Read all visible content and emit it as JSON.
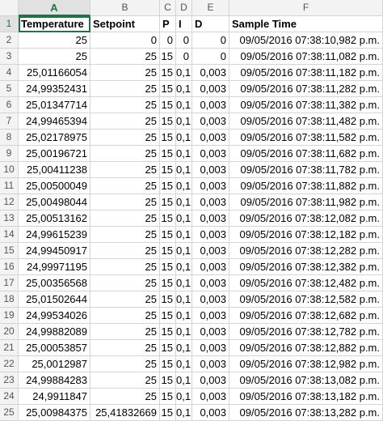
{
  "columns": [
    "A",
    "B",
    "C",
    "D",
    "E",
    "F"
  ],
  "header_row_number": "1",
  "headers": [
    "Temperature",
    "Setpoint",
    "P",
    "I",
    "D",
    "Sample Time"
  ],
  "rows": [
    {
      "n": "2",
      "a": "25",
      "b": "0",
      "c": "0",
      "d": "0",
      "e": "0",
      "f": "09/05/2016 07:38:10,982 p.m."
    },
    {
      "n": "3",
      "a": "25",
      "b": "25",
      "c": "15",
      "d": "0",
      "e": "0",
      "f": "09/05/2016 07:38:11,082 p.m."
    },
    {
      "n": "4",
      "a": "25,01166054",
      "b": "25",
      "c": "15",
      "d": "0,1",
      "e": "0,003",
      "f": "09/05/2016 07:38:11,182 p.m."
    },
    {
      "n": "5",
      "a": "24,99352431",
      "b": "25",
      "c": "15",
      "d": "0,1",
      "e": "0,003",
      "f": "09/05/2016 07:38:11,282 p.m."
    },
    {
      "n": "6",
      "a": "25,01347714",
      "b": "25",
      "c": "15",
      "d": "0,1",
      "e": "0,003",
      "f": "09/05/2016 07:38:11,382 p.m."
    },
    {
      "n": "7",
      "a": "24,99465394",
      "b": "25",
      "c": "15",
      "d": "0,1",
      "e": "0,003",
      "f": "09/05/2016 07:38:11,482 p.m."
    },
    {
      "n": "8",
      "a": "25,02178975",
      "b": "25",
      "c": "15",
      "d": "0,1",
      "e": "0,003",
      "f": "09/05/2016 07:38:11,582 p.m."
    },
    {
      "n": "9",
      "a": "25,00196721",
      "b": "25",
      "c": "15",
      "d": "0,1",
      "e": "0,003",
      "f": "09/05/2016 07:38:11,682 p.m."
    },
    {
      "n": "10",
      "a": "25,00411238",
      "b": "25",
      "c": "15",
      "d": "0,1",
      "e": "0,003",
      "f": "09/05/2016 07:38:11,782 p.m."
    },
    {
      "n": "11",
      "a": "25,00500049",
      "b": "25",
      "c": "15",
      "d": "0,1",
      "e": "0,003",
      "f": "09/05/2016 07:38:11,882 p.m."
    },
    {
      "n": "12",
      "a": "25,00498044",
      "b": "25",
      "c": "15",
      "d": "0,1",
      "e": "0,003",
      "f": "09/05/2016 07:38:11,982 p.m."
    },
    {
      "n": "13",
      "a": "25,00513162",
      "b": "25",
      "c": "15",
      "d": "0,1",
      "e": "0,003",
      "f": "09/05/2016 07:38:12,082 p.m."
    },
    {
      "n": "14",
      "a": "24,99615239",
      "b": "25",
      "c": "15",
      "d": "0,1",
      "e": "0,003",
      "f": "09/05/2016 07:38:12,182 p.m."
    },
    {
      "n": "15",
      "a": "24,99450917",
      "b": "25",
      "c": "15",
      "d": "0,1",
      "e": "0,003",
      "f": "09/05/2016 07:38:12,282 p.m."
    },
    {
      "n": "16",
      "a": "24,99971195",
      "b": "25",
      "c": "15",
      "d": "0,1",
      "e": "0,003",
      "f": "09/05/2016 07:38:12,382 p.m."
    },
    {
      "n": "17",
      "a": "25,00356568",
      "b": "25",
      "c": "15",
      "d": "0,1",
      "e": "0,003",
      "f": "09/05/2016 07:38:12,482 p.m."
    },
    {
      "n": "18",
      "a": "25,01502644",
      "b": "25",
      "c": "15",
      "d": "0,1",
      "e": "0,003",
      "f": "09/05/2016 07:38:12,582 p.m."
    },
    {
      "n": "19",
      "a": "24,99534026",
      "b": "25",
      "c": "15",
      "d": "0,1",
      "e": "0,003",
      "f": "09/05/2016 07:38:12,682 p.m."
    },
    {
      "n": "20",
      "a": "24,99882089",
      "b": "25",
      "c": "15",
      "d": "0,1",
      "e": "0,003",
      "f": "09/05/2016 07:38:12,782 p.m."
    },
    {
      "n": "21",
      "a": "25,00053857",
      "b": "25",
      "c": "15",
      "d": "0,1",
      "e": "0,003",
      "f": "09/05/2016 07:38:12,882 p.m."
    },
    {
      "n": "22",
      "a": "25,0012987",
      "b": "25",
      "c": "15",
      "d": "0,1",
      "e": "0,003",
      "f": "09/05/2016 07:38:12,982 p.m."
    },
    {
      "n": "23",
      "a": "24,99884283",
      "b": "25",
      "c": "15",
      "d": "0,1",
      "e": "0,003",
      "f": "09/05/2016 07:38:13,082 p.m."
    },
    {
      "n": "24",
      "a": "24,9911847",
      "b": "25",
      "c": "15",
      "d": "0,1",
      "e": "0,003",
      "f": "09/05/2016 07:38:13,182 p.m."
    },
    {
      "n": "25",
      "a": "25,00984375",
      "b": "25,41832669",
      "c": "15",
      "d": "0,1",
      "e": "0,003",
      "f": "09/05/2016 07:38:13,282 p.m."
    }
  ],
  "colors": {
    "accent": "#217346",
    "header_bg": "#f3f3f3",
    "gridline": "#d4d4d4"
  }
}
